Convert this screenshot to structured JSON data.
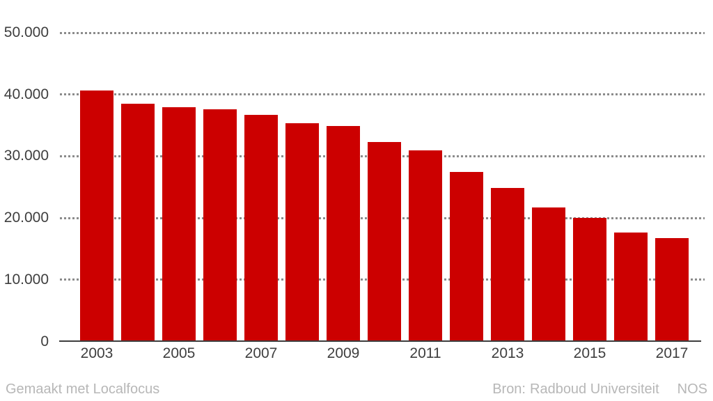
{
  "chart_data": {
    "type": "bar",
    "categories": [
      "2003",
      "2004",
      "2005",
      "2006",
      "2007",
      "2008",
      "2009",
      "2010",
      "2011",
      "2012",
      "2013",
      "2014",
      "2015",
      "2016",
      "2017"
    ],
    "values": [
      40600,
      38500,
      37900,
      37600,
      36700,
      35400,
      34900,
      32300,
      31000,
      27500,
      24900,
      21700,
      20000,
      17700,
      16700
    ],
    "ylim": [
      0,
      50000
    ],
    "ytick_values": [
      0,
      10000,
      20000,
      30000,
      40000,
      50000
    ],
    "ytick_labels": [
      "0",
      "10.000",
      "20.000",
      "30.000",
      "40.000",
      "50.000"
    ],
    "xtick_labels": [
      "2003",
      "2005",
      "2007",
      "2009",
      "2011",
      "2013",
      "2015",
      "2017"
    ],
    "grid": "horizontal dotted",
    "legend": "none",
    "bar_color": "#cc0000"
  },
  "colors": {
    "bar": "#cc0000",
    "grid": "#8b8b8b",
    "axis_line": "#3e3e3e",
    "tick_text": "#3e3e3e",
    "footer_text": "#b7b7b7",
    "background": "#ffffff"
  },
  "footer": {
    "credit": "Gemaakt met Localfocus",
    "source_label": "Bron:",
    "source": "Radboud Universiteit",
    "brand": "NOS"
  }
}
